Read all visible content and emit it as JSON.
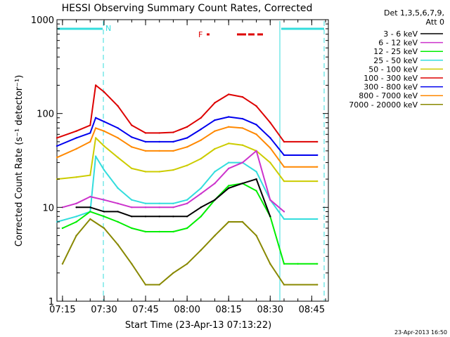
{
  "chart_data": {
    "type": "line",
    "title": "HESSI Observing Summary Count Rates, Corrected",
    "xlabel": "Start Time (23-Apr-13 07:13:22)",
    "ylabel": "Corrected Count Rate (s⁻¹ detector⁻¹)",
    "y_scale": "log",
    "ylim": [
      1,
      1000
    ],
    "xlim": [
      "07:13",
      "08:51"
    ],
    "x_ticks": [
      "07:15",
      "07:30",
      "07:45",
      "08:00",
      "08:15",
      "08:30",
      "08:45"
    ],
    "y_ticks": [
      "1",
      "10",
      "100",
      "1000"
    ],
    "detectors_label": "Det 1,3,5,6,7,9,",
    "attenuator_label": "Att 0",
    "timestamp": "23-Apr-2013 16:50",
    "grid": false,
    "legend_position": "right",
    "annotations": {
      "night_marker": "N",
      "flare_marker": "F"
    },
    "series": [
      {
        "name": "3 - 6 keV",
        "color": "#000000",
        "x": [
          "07:20",
          "07:25",
          "07:30",
          "07:35",
          "07:40",
          "07:45",
          "07:50",
          "07:55",
          "08:00",
          "08:05",
          "08:10",
          "08:15",
          "08:20",
          "08:25",
          "08:30"
        ],
        "values": [
          10,
          10,
          9,
          9,
          8,
          8,
          8,
          8,
          8,
          10,
          12,
          16,
          18,
          20,
          8
        ]
      },
      {
        "name": "6 - 12 keV",
        "color": "#cc33cc",
        "x": [
          "07:15",
          "07:20",
          "07:25",
          "07:30",
          "07:35",
          "07:40",
          "07:45",
          "07:50",
          "07:55",
          "08:00",
          "08:05",
          "08:10",
          "08:15",
          "08:20",
          "08:25",
          "08:30",
          "08:35"
        ],
        "values": [
          10,
          11,
          13,
          12,
          11,
          10,
          10,
          10,
          10,
          11,
          14,
          18,
          26,
          30,
          40,
          12,
          9
        ]
      },
      {
        "name": "12 - 25 keV",
        "color": "#00ee00",
        "x": [
          "07:15",
          "07:20",
          "07:25",
          "07:30",
          "07:35",
          "07:40",
          "07:45",
          "07:50",
          "07:55",
          "08:00",
          "08:05",
          "08:10",
          "08:15",
          "08:20",
          "08:25",
          "08:30",
          "08:35",
          "08:40",
          "08:47"
        ],
        "values": [
          6,
          7,
          9,
          8,
          7,
          6,
          5.5,
          5.5,
          5.5,
          6,
          8,
          12,
          17,
          18,
          15,
          8,
          2.5,
          2.5,
          2.5
        ]
      },
      {
        "name": "25 - 50 keV",
        "color": "#33dddd",
        "x": [
          "07:13",
          "07:20",
          "07:25",
          "07:27",
          "07:30",
          "07:35",
          "07:40",
          "07:45",
          "07:50",
          "07:55",
          "08:00",
          "08:05",
          "08:10",
          "08:15",
          "08:20",
          "08:25",
          "08:30",
          "08:35",
          "08:47"
        ],
        "values": [
          7,
          8,
          9,
          35,
          25,
          16,
          12,
          11,
          11,
          11,
          12,
          16,
          24,
          30,
          30,
          24,
          12,
          7.5,
          7.5
        ]
      },
      {
        "name": "50 - 100 keV",
        "color": "#cccc00",
        "x": [
          "07:13",
          "07:20",
          "07:25",
          "07:27",
          "07:30",
          "07:35",
          "07:40",
          "07:45",
          "07:50",
          "07:55",
          "08:00",
          "08:05",
          "08:10",
          "08:15",
          "08:20",
          "08:25",
          "08:30",
          "08:35",
          "08:47"
        ],
        "values": [
          20,
          21,
          22,
          55,
          45,
          34,
          26,
          24,
          24,
          25,
          28,
          33,
          42,
          48,
          46,
          40,
          30,
          19,
          19
        ]
      },
      {
        "name": "100 - 300 keV",
        "color": "#dd0000",
        "x": [
          "07:13",
          "07:20",
          "07:25",
          "07:27",
          "07:30",
          "07:35",
          "07:40",
          "07:45",
          "07:50",
          "07:55",
          "08:00",
          "08:05",
          "08:10",
          "08:15",
          "08:20",
          "08:25",
          "08:30",
          "08:35",
          "08:47"
        ],
        "values": [
          55,
          65,
          75,
          200,
          170,
          120,
          75,
          62,
          62,
          63,
          72,
          90,
          130,
          160,
          150,
          120,
          80,
          50,
          50
        ]
      },
      {
        "name": "300 - 800 keV",
        "color": "#0000ee",
        "x": [
          "07:13",
          "07:20",
          "07:25",
          "07:27",
          "07:30",
          "07:35",
          "07:40",
          "07:45",
          "07:50",
          "07:55",
          "08:00",
          "08:05",
          "08:10",
          "08:15",
          "08:20",
          "08:25",
          "08:30",
          "08:35",
          "08:47"
        ],
        "values": [
          45,
          55,
          62,
          90,
          82,
          70,
          56,
          50,
          50,
          50,
          55,
          68,
          85,
          92,
          88,
          76,
          55,
          36,
          36
        ]
      },
      {
        "name": "800 - 7000 keV",
        "color": "#ff8800",
        "x": [
          "07:13",
          "07:20",
          "07:25",
          "07:27",
          "07:30",
          "07:35",
          "07:40",
          "07:45",
          "07:50",
          "07:55",
          "08:00",
          "08:05",
          "08:10",
          "08:15",
          "08:20",
          "08:25",
          "08:30",
          "08:35",
          "08:47"
        ],
        "values": [
          34,
          42,
          50,
          70,
          65,
          55,
          44,
          40,
          40,
          40,
          44,
          52,
          65,
          72,
          70,
          60,
          43,
          27,
          27
        ]
      },
      {
        "name": "7000 - 20000 keV",
        "color": "#888800",
        "x": [
          "07:15",
          "07:20",
          "07:25",
          "07:30",
          "07:35",
          "07:40",
          "07:45",
          "07:50",
          "07:55",
          "08:00",
          "08:05",
          "08:10",
          "08:15",
          "08:20",
          "08:25",
          "08:30",
          "08:35",
          "08:47"
        ],
        "values": [
          2.5,
          5,
          7.5,
          6,
          4,
          2.5,
          1.5,
          1.5,
          2,
          2.5,
          3.5,
          5,
          7,
          7,
          5,
          2.5,
          1.5,
          1.5
        ]
      }
    ]
  }
}
